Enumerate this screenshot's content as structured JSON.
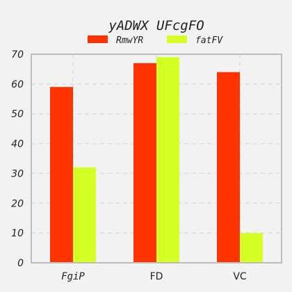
{
  "chart_data": {
    "type": "bar",
    "title": "yADWX UFcgFO",
    "xlabel": "",
    "ylabel": "",
    "categories": [
      "FgiP",
      "FD",
      "VC"
    ],
    "series": [
      {
        "name": "RmwYR",
        "values": [
          59,
          67,
          64
        ],
        "color": "#ff3300"
      },
      {
        "name": "fatFV",
        "values": [
          32,
          69,
          10
        ],
        "color": "#d4ff22"
      }
    ],
    "ylim": [
      0,
      70
    ],
    "yticks": [
      0,
      10,
      20,
      30,
      40,
      50,
      60,
      70
    ],
    "grid": true,
    "legend_position": "top-center"
  }
}
